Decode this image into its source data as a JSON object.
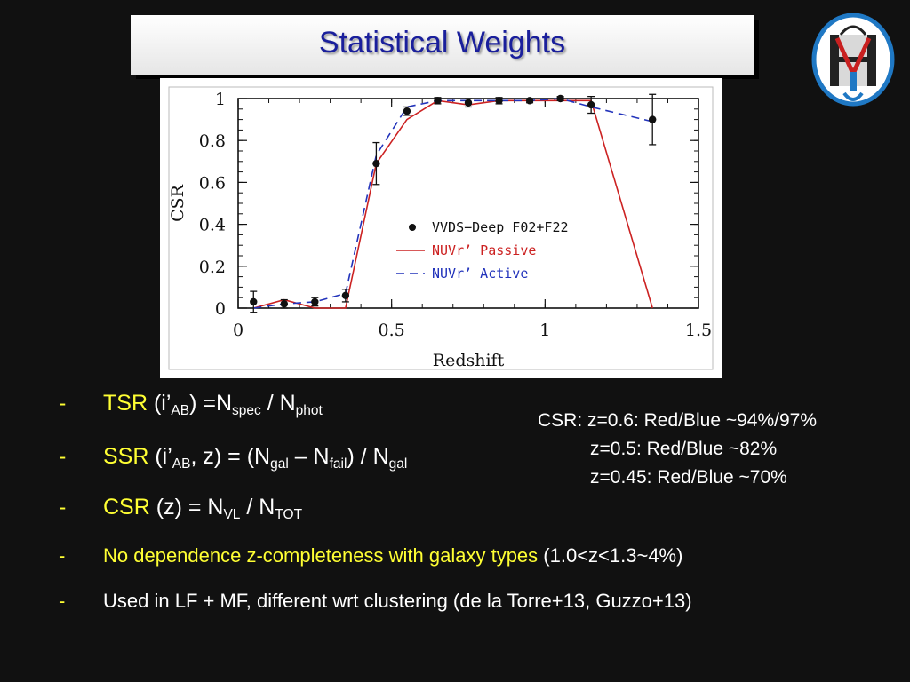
{
  "slide": {
    "title": "Statistical Weights",
    "bullets": [
      {
        "dash": "-",
        "label": "TSR",
        "arg_pre": "(i’",
        "arg_sub": "AB",
        "arg_post": ")",
        "eq": "=N",
        "n1_sub": "spec",
        "sep": " /  N",
        "n2_sub": "phot"
      },
      {
        "dash": "-",
        "label": "SSR",
        "arg_pre": "(i’",
        "arg_sub": "AB",
        "arg_post": ", z) = (N",
        "n1_sub": "gal",
        "mid": " – N",
        "n2_sub": "fail",
        "mid2": ") / N",
        "n3_sub": "gal"
      },
      {
        "dash": "-",
        "label": "CSR",
        "arg": "(z) = N",
        "n1_sub": "VL",
        "sep": " / N",
        "n2_sub": "TOT"
      },
      {
        "dash": "-",
        "text": "No dependence z-completeness with galaxy types",
        "paren": " (1.0<z<1.3~4%)"
      },
      {
        "dash": "-",
        "text": "Used in LF + MF, different wrt clustering (de la Torre+13, Guzzo+13)"
      }
    ],
    "csr_note": {
      "line1": "CSR: z=0.6: Red/Blue ~94%/97%",
      "line2": "z=0.5: Red/Blue ~82%",
      "line3": "z=0.45: Red/Blue ~70%"
    },
    "colors": {
      "title": "#1a1f9c",
      "highlight": "#ffff33",
      "passive": "#cc2222",
      "active": "#2233bb"
    },
    "logo_icon": "vvds-shield-logo-icon"
  },
  "chart_data": {
    "type": "line",
    "xlabel": "Redshift",
    "ylabel": "CSR",
    "xlim": [
      0,
      1.5
    ],
    "ylim": [
      0,
      1
    ],
    "xticks": [
      0,
      0.5,
      1,
      1.5
    ],
    "xtick_labels": [
      "0",
      "0.5",
      "1",
      "1.5"
    ],
    "yticks": [
      0,
      0.2,
      0.4,
      0.6,
      0.8,
      1
    ],
    "ytick_labels": [
      "0",
      "0.2",
      "0.4",
      "0.6",
      "0.8",
      "1"
    ],
    "grid": false,
    "legend_position": "center-right",
    "series": [
      {
        "name": "VVDS−Deep F02+F22",
        "kind": "points",
        "x": [
          0.05,
          0.15,
          0.25,
          0.35,
          0.45,
          0.55,
          0.65,
          0.75,
          0.85,
          0.95,
          1.05,
          1.15,
          1.35
        ],
        "y": [
          0.03,
          0.02,
          0.03,
          0.06,
          0.69,
          0.94,
          0.99,
          0.98,
          0.99,
          0.99,
          1.0,
          0.97,
          0.9
        ],
        "err": [
          0.05,
          0.02,
          0.02,
          0.03,
          0.1,
          0.02,
          0.015,
          0.02,
          0.015,
          0.01,
          0.01,
          0.04,
          0.12
        ]
      },
      {
        "name": "NUVr’ Passive",
        "kind": "solid",
        "color": "#cc2222",
        "x": [
          0.05,
          0.15,
          0.25,
          0.35,
          0.45,
          0.55,
          0.65,
          0.75,
          0.85,
          0.95,
          1.05,
          1.15,
          1.35
        ],
        "y": [
          0.0,
          0.04,
          0.0,
          0.0,
          0.69,
          0.9,
          0.99,
          0.97,
          0.99,
          0.99,
          0.99,
          0.99,
          0.0
        ]
      },
      {
        "name": "NUVr’ Active",
        "kind": "dashed",
        "color": "#2233bb",
        "x": [
          0.05,
          0.15,
          0.25,
          0.35,
          0.45,
          0.55,
          0.65,
          0.75,
          0.85,
          0.95,
          1.05,
          1.15,
          1.35
        ],
        "y": [
          0.0,
          0.02,
          0.03,
          0.07,
          0.73,
          0.96,
          0.99,
          0.99,
          0.99,
          0.99,
          1.0,
          0.96,
          0.89
        ]
      }
    ]
  }
}
